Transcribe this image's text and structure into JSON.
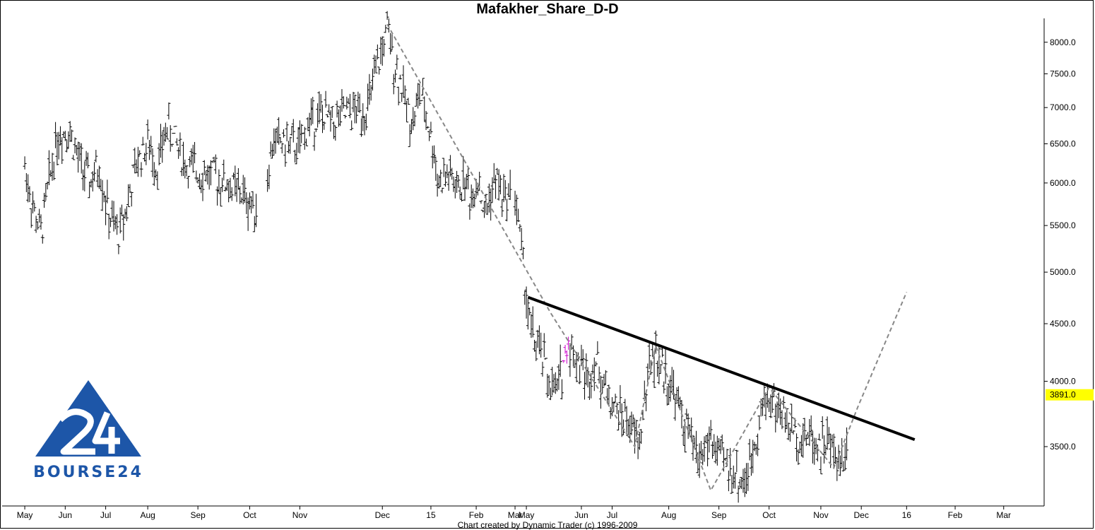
{
  "chart_data": {
    "type": "ohlc",
    "title": "Mafakher_Share_D-D",
    "footer": "Chart created by Dynamic Trader  (c) 1996-2009",
    "y_scale": "log",
    "ylim": [
      3100,
      8400
    ],
    "yticks": [
      3500,
      4000,
      4500,
      5000,
      5500,
      6000,
      6500,
      7000,
      7500,
      8000
    ],
    "ytick_labels": [
      "3500.0",
      "4000.0",
      "4500.0",
      "5000.0",
      "5500.0",
      "6000.0",
      "6500.0",
      "7000.0",
      "7500.0",
      "8000.0"
    ],
    "x_tick_labels": [
      "May",
      "Jun",
      "Jul",
      "Aug",
      "Sep",
      "Oct",
      "Nov",
      "Dec",
      "15",
      "Feb",
      "Mar",
      "May",
      "Jun",
      "Jul",
      "Aug",
      "Sep",
      "Oct",
      "Nov",
      "Dec",
      "16",
      "Feb",
      "Mar"
    ],
    "last_price_label": "3891.0",
    "last_price": 3891,
    "close_path": [
      {
        "x": 0,
        "y": 6200
      },
      {
        "x": 5,
        "y": 5700
      },
      {
        "x": 10,
        "y": 5400
      },
      {
        "x": 14,
        "y": 5900
      },
      {
        "x": 20,
        "y": 6600
      },
      {
        "x": 27,
        "y": 6700
      },
      {
        "x": 33,
        "y": 6300
      },
      {
        "x": 40,
        "y": 6000
      },
      {
        "x": 46,
        "y": 6200
      },
      {
        "x": 52,
        "y": 5600
      },
      {
        "x": 58,
        "y": 5400
      },
      {
        "x": 64,
        "y": 5800
      },
      {
        "x": 70,
        "y": 6300
      },
      {
        "x": 76,
        "y": 6500
      },
      {
        "x": 82,
        "y": 6200
      },
      {
        "x": 88,
        "y": 6750
      },
      {
        "x": 94,
        "y": 6500
      },
      {
        "x": 100,
        "y": 6200
      },
      {
        "x": 108,
        "y": 6150
      },
      {
        "x": 116,
        "y": 6100
      },
      {
        "x": 124,
        "y": 6000
      },
      {
        "x": 132,
        "y": 5900
      },
      {
        "x": 140,
        "y": 5750
      },
      {
        "x": 146,
        "y": 5700
      },
      {
        "x": 150,
        "y": 6100
      },
      {
        "x": 154,
        "y": 6550
      },
      {
        "x": 162,
        "y": 6500
      },
      {
        "x": 170,
        "y": 6450
      },
      {
        "x": 176,
        "y": 6800
      },
      {
        "x": 182,
        "y": 6900
      },
      {
        "x": 190,
        "y": 6800
      },
      {
        "x": 198,
        "y": 6900
      },
      {
        "x": 206,
        "y": 6950
      },
      {
        "x": 212,
        "y": 7000
      },
      {
        "x": 216,
        "y": 7400
      },
      {
        "x": 220,
        "y": 7800
      },
      {
        "x": 224,
        "y": 8200
      },
      {
        "x": 228,
        "y": 7700
      },
      {
        "x": 232,
        "y": 7400
      },
      {
        "x": 236,
        "y": 7000
      },
      {
        "x": 240,
        "y": 6800
      },
      {
        "x": 244,
        "y": 7200
      },
      {
        "x": 248,
        "y": 6900
      },
      {
        "x": 252,
        "y": 6500
      },
      {
        "x": 256,
        "y": 6000
      },
      {
        "x": 262,
        "y": 6100
      },
      {
        "x": 268,
        "y": 5900
      },
      {
        "x": 272,
        "y": 6050
      },
      {
        "x": 276,
        "y": 5800
      },
      {
        "x": 280,
        "y": 6100
      },
      {
        "x": 284,
        "y": 5600
      },
      {
        "x": 288,
        "y": 5900
      },
      {
        "x": 292,
        "y": 6050
      },
      {
        "x": 296,
        "y": 5800
      },
      {
        "x": 300,
        "y": 5900
      },
      {
        "x": 303,
        "y": 5900
      },
      {
        "x": 306,
        "y": 5400
      },
      {
        "x": 309,
        "y": 4900
      },
      {
        "x": 312,
        "y": 4500
      },
      {
        "x": 316,
        "y": 4300
      },
      {
        "x": 320,
        "y": 4200
      },
      {
        "x": 324,
        "y": 4000
      },
      {
        "x": 328,
        "y": 3900
      },
      {
        "x": 332,
        "y": 4100
      },
      {
        "x": 336,
        "y": 4350
      },
      {
        "x": 340,
        "y": 4200
      },
      {
        "x": 344,
        "y": 4150
      },
      {
        "x": 348,
        "y": 4000
      },
      {
        "x": 352,
        "y": 4200
      },
      {
        "x": 356,
        "y": 4050
      },
      {
        "x": 360,
        "y": 3900
      },
      {
        "x": 364,
        "y": 3800
      },
      {
        "x": 368,
        "y": 3750
      },
      {
        "x": 372,
        "y": 3700
      },
      {
        "x": 376,
        "y": 3600
      },
      {
        "x": 380,
        "y": 3520
      },
      {
        "x": 384,
        "y": 3950
      },
      {
        "x": 388,
        "y": 4250
      },
      {
        "x": 392,
        "y": 4150
      },
      {
        "x": 396,
        "y": 4050
      },
      {
        "x": 400,
        "y": 3950
      },
      {
        "x": 404,
        "y": 3800
      },
      {
        "x": 408,
        "y": 3650
      },
      {
        "x": 412,
        "y": 3550
      },
      {
        "x": 416,
        "y": 3400
      },
      {
        "x": 420,
        "y": 3500
      },
      {
        "x": 424,
        "y": 3550
      },
      {
        "x": 428,
        "y": 3450
      },
      {
        "x": 432,
        "y": 3400
      },
      {
        "x": 436,
        "y": 3350
      },
      {
        "x": 440,
        "y": 3300
      },
      {
        "x": 444,
        "y": 3250
      },
      {
        "x": 448,
        "y": 3350
      },
      {
        "x": 452,
        "y": 3600
      },
      {
        "x": 456,
        "y": 3800
      },
      {
        "x": 460,
        "y": 3900
      },
      {
        "x": 464,
        "y": 3800
      },
      {
        "x": 468,
        "y": 3750
      },
      {
        "x": 472,
        "y": 3650
      },
      {
        "x": 476,
        "y": 3600
      },
      {
        "x": 480,
        "y": 3550
      },
      {
        "x": 484,
        "y": 3600
      },
      {
        "x": 488,
        "y": 3550
      },
      {
        "x": 492,
        "y": 3500
      },
      {
        "x": 496,
        "y": 3550
      },
      {
        "x": 500,
        "y": 3450
      },
      {
        "x": 504,
        "y": 3400
      },
      {
        "x": 508,
        "y": 3500
      }
    ],
    "overlays": {
      "trendline": {
        "x0": 311,
        "y0": 4750,
        "x1": 550,
        "y1": 3550,
        "color": "#000000",
        "style": "solid"
      },
      "zigzag_projection": {
        "color": "#888888",
        "style": "dashed",
        "points": [
          {
            "x": 224,
            "y": 8300
          },
          {
            "x": 325,
            "y": 4600
          },
          {
            "x": 377,
            "y": 3500
          },
          {
            "x": 390,
            "y": 4300
          },
          {
            "x": 424,
            "y": 3200
          },
          {
            "x": 460,
            "y": 3950
          },
          {
            "x": 500,
            "y": 3350
          },
          {
            "x": 515,
            "y": 3800
          },
          {
            "x": 545,
            "y": 4800
          }
        ]
      }
    },
    "x_tick_positions": [
      0,
      25,
      50,
      76,
      107,
      139,
      170,
      221,
      251,
      279,
      303,
      310,
      344,
      363,
      398,
      429,
      460,
      492,
      517,
      545,
      575,
      605
    ],
    "logo_text": "BOURSE24",
    "colors": {
      "bars": "#000000",
      "trendline": "#000000",
      "projection": "#888888",
      "last_price_bg": "#ffff00",
      "logo": "#1d56a8",
      "highlight_bars": "#cc00cc"
    }
  }
}
